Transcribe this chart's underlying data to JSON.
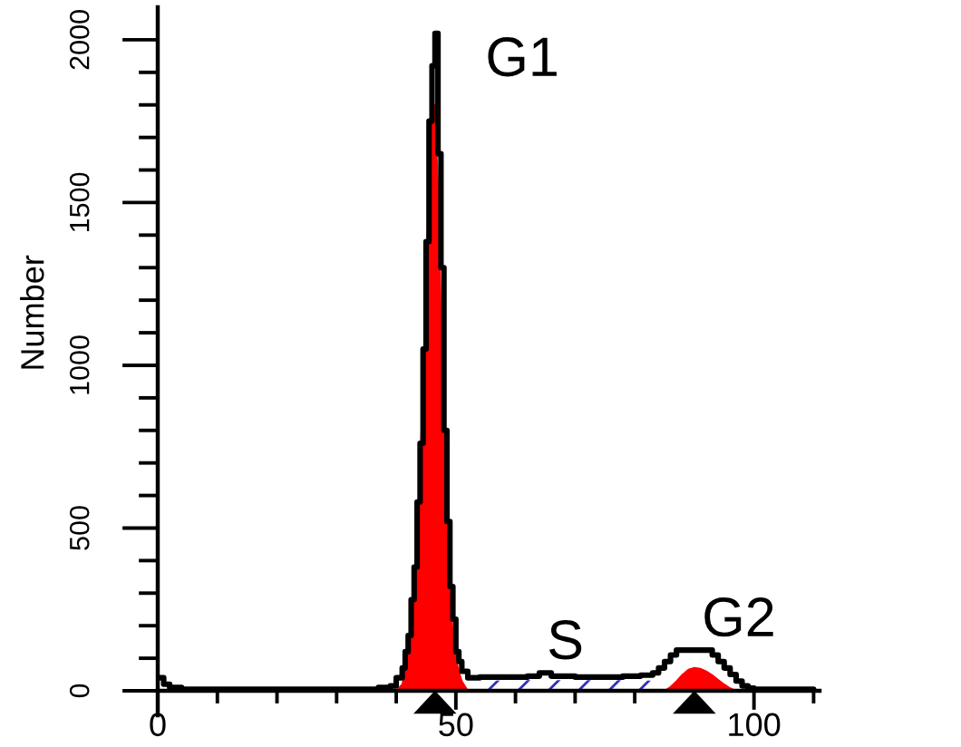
{
  "chart_data": {
    "type": "step",
    "ylabel": "Number",
    "xlim": [
      0,
      111
    ],
    "ylim": [
      -75,
      2100
    ],
    "xticks": [
      0,
      {
        "value": 10,
        "label": null
      },
      {
        "value": 20,
        "label": null
      },
      {
        "value": 30,
        "label": null
      },
      {
        "value": 40,
        "label": null
      },
      50,
      {
        "value": 60,
        "label": null
      },
      {
        "value": 70,
        "label": null
      },
      {
        "value": 80,
        "label": null
      },
      {
        "value": 90,
        "label": null
      },
      100,
      {
        "value": 110,
        "label": null
      }
    ],
    "yticks": [
      0,
      {
        "value": 100,
        "label": null
      },
      {
        "value": 200,
        "label": null
      },
      {
        "value": 300,
        "label": null
      },
      {
        "value": 400,
        "label": null
      },
      500,
      {
        "value": 600,
        "label": null
      },
      {
        "value": 700,
        "label": null
      },
      {
        "value": 800,
        "label": null
      },
      {
        "value": 900,
        "label": null
      },
      1000,
      {
        "value": 1100,
        "label": null
      },
      {
        "value": 1200,
        "label": null
      },
      {
        "value": 1300,
        "label": null
      },
      {
        "value": 1400,
        "label": null
      },
      1500,
      {
        "value": 1600,
        "label": null
      },
      {
        "value": 1700,
        "label": null
      },
      {
        "value": 1800,
        "label": null
      },
      {
        "value": 1900,
        "label": null
      },
      2000
    ],
    "annotations": [
      {
        "text": "G1",
        "x": 46.5,
        "y": 2020
      },
      {
        "text": "S",
        "x": 64,
        "y": 55
      },
      {
        "text": "G2",
        "x": 90,
        "y": 125
      }
    ],
    "series": [
      {
        "type": "area",
        "color": "#3030c0",
        "line_style": "dashed",
        "x": [
          51,
          53,
          60,
          70,
          80,
          85,
          87
        ],
        "values": [
          0,
          30,
          33,
          33,
          33,
          30,
          0
        ]
      },
      {
        "type": "area",
        "color": "#ff0000",
        "x": [
          40,
          41,
          42,
          42.5,
          43,
          43.5,
          44,
          44.5,
          45,
          45.5,
          46,
          46.5,
          47,
          47.5,
          48,
          48.5,
          49,
          49.5,
          50,
          50.5,
          51,
          52
        ],
        "values": [
          0,
          20,
          100,
          180,
          300,
          450,
          680,
          950,
          1250,
          1600,
          1780,
          1800,
          1550,
          1150,
          750,
          480,
          290,
          180,
          100,
          60,
          30,
          0
        ]
      },
      {
        "type": "area",
        "color": "#ff0000",
        "x": [
          85,
          86,
          87,
          88,
          89,
          90,
          91,
          92,
          93,
          94,
          95,
          96,
          97
        ],
        "values": [
          0,
          12,
          30,
          50,
          65,
          71,
          68,
          60,
          48,
          34,
          20,
          8,
          0
        ]
      },
      {
        "color": "#000000",
        "x": [
          0,
          1,
          2,
          4,
          8,
          15,
          25,
          33,
          37,
          39,
          40,
          41,
          41.5,
          42,
          42.5,
          43,
          43.5,
          44,
          44.5,
          45,
          45.5,
          46,
          46.5,
          47,
          47.5,
          48,
          48.5,
          49,
          49.5,
          50,
          50.5,
          51,
          52,
          54,
          58,
          62,
          64,
          66,
          70,
          74,
          78,
          81,
          83,
          84,
          85,
          86,
          87,
          93,
          94,
          95,
          96,
          97,
          98,
          99,
          100,
          104,
          108,
          110
        ],
        "values": [
          40,
          20,
          10,
          5,
          5,
          5,
          5,
          5,
          10,
          15,
          40,
          70,
          120,
          170,
          280,
          380,
          580,
          760,
          1050,
          1380,
          1750,
          1920,
          2020,
          1650,
          1300,
          800,
          520,
          320,
          220,
          120,
          90,
          60,
          40,
          42,
          42,
          45,
          55,
          45,
          42,
          42,
          45,
          48,
          55,
          70,
          90,
          110,
          125,
          110,
          90,
          70,
          50,
          30,
          15,
          8,
          5,
          5,
          5,
          5
        ]
      },
      {
        "type": "scatter",
        "color": "#000000",
        "marker": "triangle",
        "x": [
          46.5,
          90
        ],
        "values": [
          -35,
          -35
        ]
      }
    ]
  }
}
